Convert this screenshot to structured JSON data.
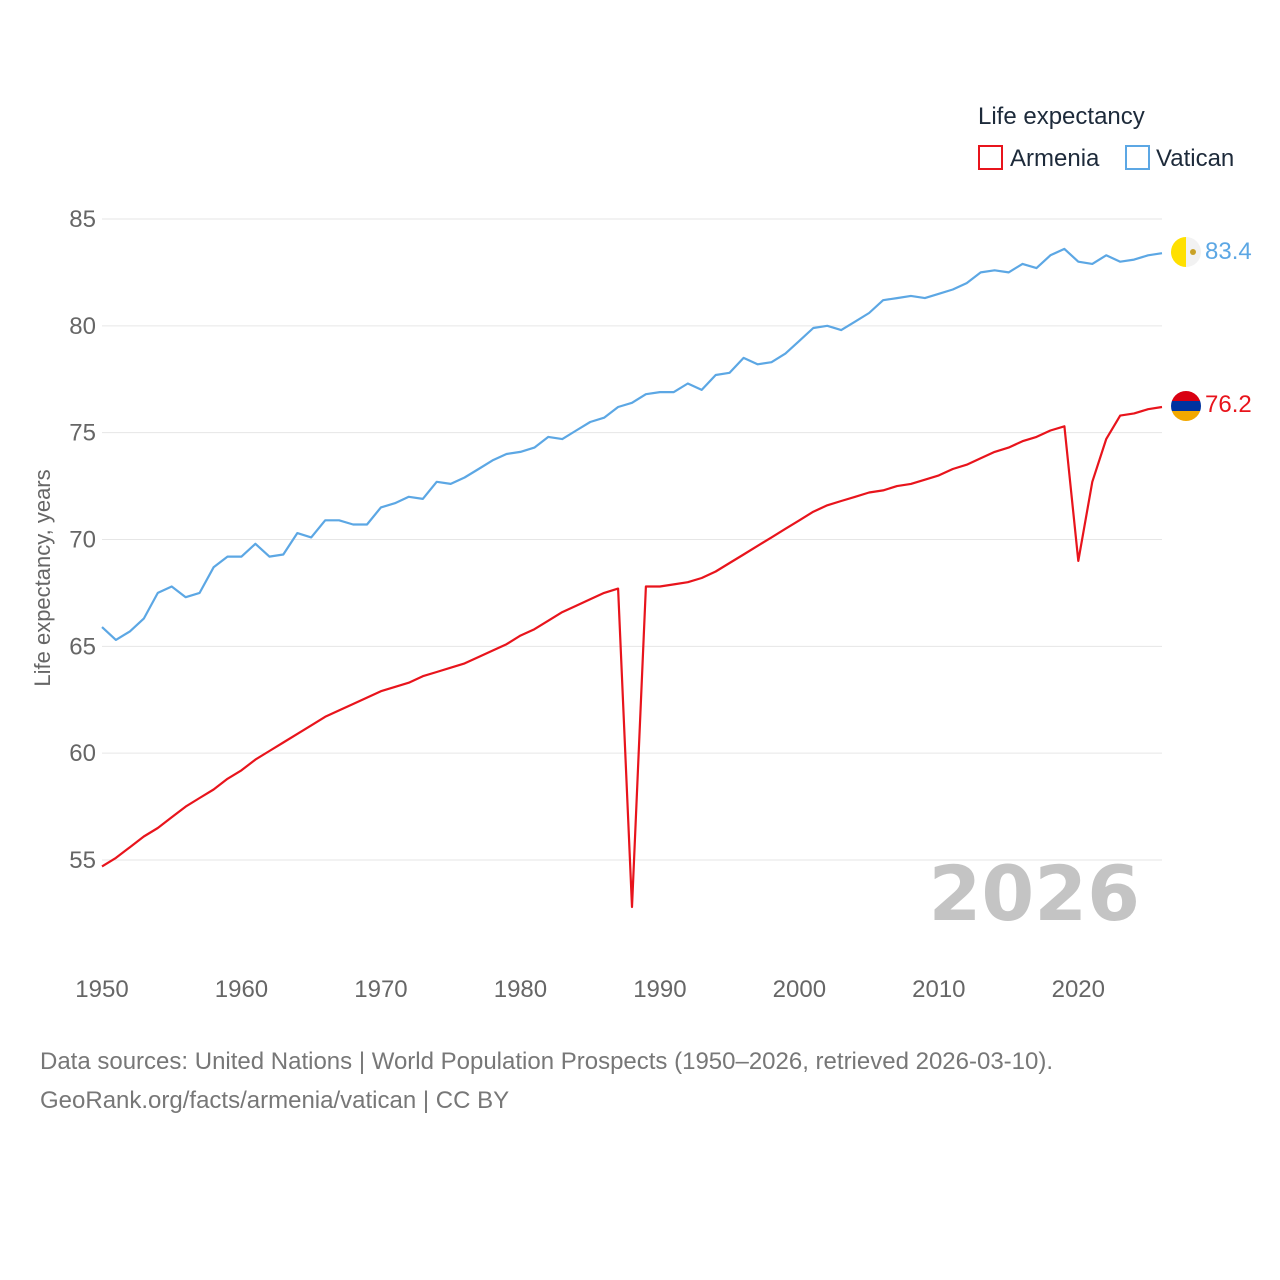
{
  "chart_data": {
    "type": "line",
    "ylabel": "Life expectancy, years",
    "legend_title": "Life expectancy",
    "legend_position": "top-right",
    "year_stamp": "2026",
    "xlim": [
      1950,
      2026
    ],
    "ylim": [
      51.5,
      85
    ],
    "x_ticks": [
      1950,
      1960,
      1970,
      1980,
      1990,
      2000,
      2010,
      2020
    ],
    "y_ticks": [
      55,
      60,
      65,
      70,
      75,
      80,
      85
    ],
    "grid": true,
    "x": [
      1950,
      1951,
      1952,
      1953,
      1954,
      1955,
      1956,
      1957,
      1958,
      1959,
      1960,
      1961,
      1962,
      1963,
      1964,
      1965,
      1966,
      1967,
      1968,
      1969,
      1970,
      1971,
      1972,
      1973,
      1974,
      1975,
      1976,
      1977,
      1978,
      1979,
      1980,
      1981,
      1982,
      1983,
      1984,
      1985,
      1986,
      1987,
      1988,
      1989,
      1990,
      1991,
      1992,
      1993,
      1994,
      1995,
      1996,
      1997,
      1998,
      1999,
      2000,
      2001,
      2002,
      2003,
      2004,
      2005,
      2006,
      2007,
      2008,
      2009,
      2010,
      2011,
      2012,
      2013,
      2014,
      2015,
      2016,
      2017,
      2018,
      2019,
      2020,
      2021,
      2022,
      2023,
      2024,
      2025,
      2026
    ],
    "series": [
      {
        "name": "Armenia",
        "color": "#e8141c",
        "flag": "armenia-flag-icon",
        "end_label": "76.2",
        "values": [
          54.7,
          55.1,
          55.6,
          56.1,
          56.5,
          57.0,
          57.5,
          57.9,
          58.3,
          58.8,
          59.2,
          59.7,
          60.1,
          60.5,
          60.9,
          61.3,
          61.7,
          62.0,
          62.3,
          62.6,
          62.9,
          63.1,
          63.3,
          63.6,
          63.8,
          64.0,
          64.2,
          64.5,
          64.8,
          65.1,
          65.5,
          65.8,
          66.2,
          66.6,
          66.9,
          67.2,
          67.5,
          67.7,
          52.8,
          67.8,
          67.8,
          67.9,
          68.0,
          68.2,
          68.5,
          68.9,
          69.3,
          69.7,
          70.1,
          70.5,
          70.9,
          71.3,
          71.6,
          71.8,
          72.0,
          72.2,
          72.3,
          72.5,
          72.6,
          72.8,
          73.0,
          73.3,
          73.5,
          73.8,
          74.1,
          74.3,
          74.6,
          74.8,
          75.1,
          75.3,
          69.0,
          72.7,
          74.7,
          75.8,
          75.9,
          76.1,
          76.2
        ]
      },
      {
        "name": "Vatican",
        "color": "#5ca7e4",
        "flag": "vatican-flag-icon",
        "end_label": "83.4",
        "values": [
          65.9,
          65.3,
          65.7,
          66.3,
          67.5,
          67.8,
          67.3,
          67.5,
          68.7,
          69.2,
          69.2,
          69.8,
          69.2,
          69.3,
          70.3,
          70.1,
          70.9,
          70.9,
          70.7,
          70.7,
          71.5,
          71.7,
          72.0,
          71.9,
          72.7,
          72.6,
          72.9,
          73.3,
          73.7,
          74.0,
          74.1,
          74.3,
          74.8,
          74.7,
          75.1,
          75.5,
          75.7,
          76.2,
          76.4,
          76.8,
          76.9,
          76.9,
          77.3,
          77.0,
          77.7,
          77.8,
          78.5,
          78.2,
          78.3,
          78.7,
          79.3,
          79.9,
          80.0,
          79.8,
          80.2,
          80.6,
          81.2,
          81.3,
          81.4,
          81.3,
          81.5,
          81.7,
          82.0,
          82.5,
          82.6,
          82.5,
          82.9,
          82.7,
          83.3,
          83.6,
          83.0,
          82.9,
          83.3,
          83.0,
          83.1,
          83.3,
          83.4
        ]
      }
    ]
  },
  "footer": {
    "sources": "Data sources: United Nations | World Population Prospects (1950–2026, retrieved 2026-03-10).",
    "credit": "GeoRank.org/facts/armenia/vatican | CC BY"
  }
}
